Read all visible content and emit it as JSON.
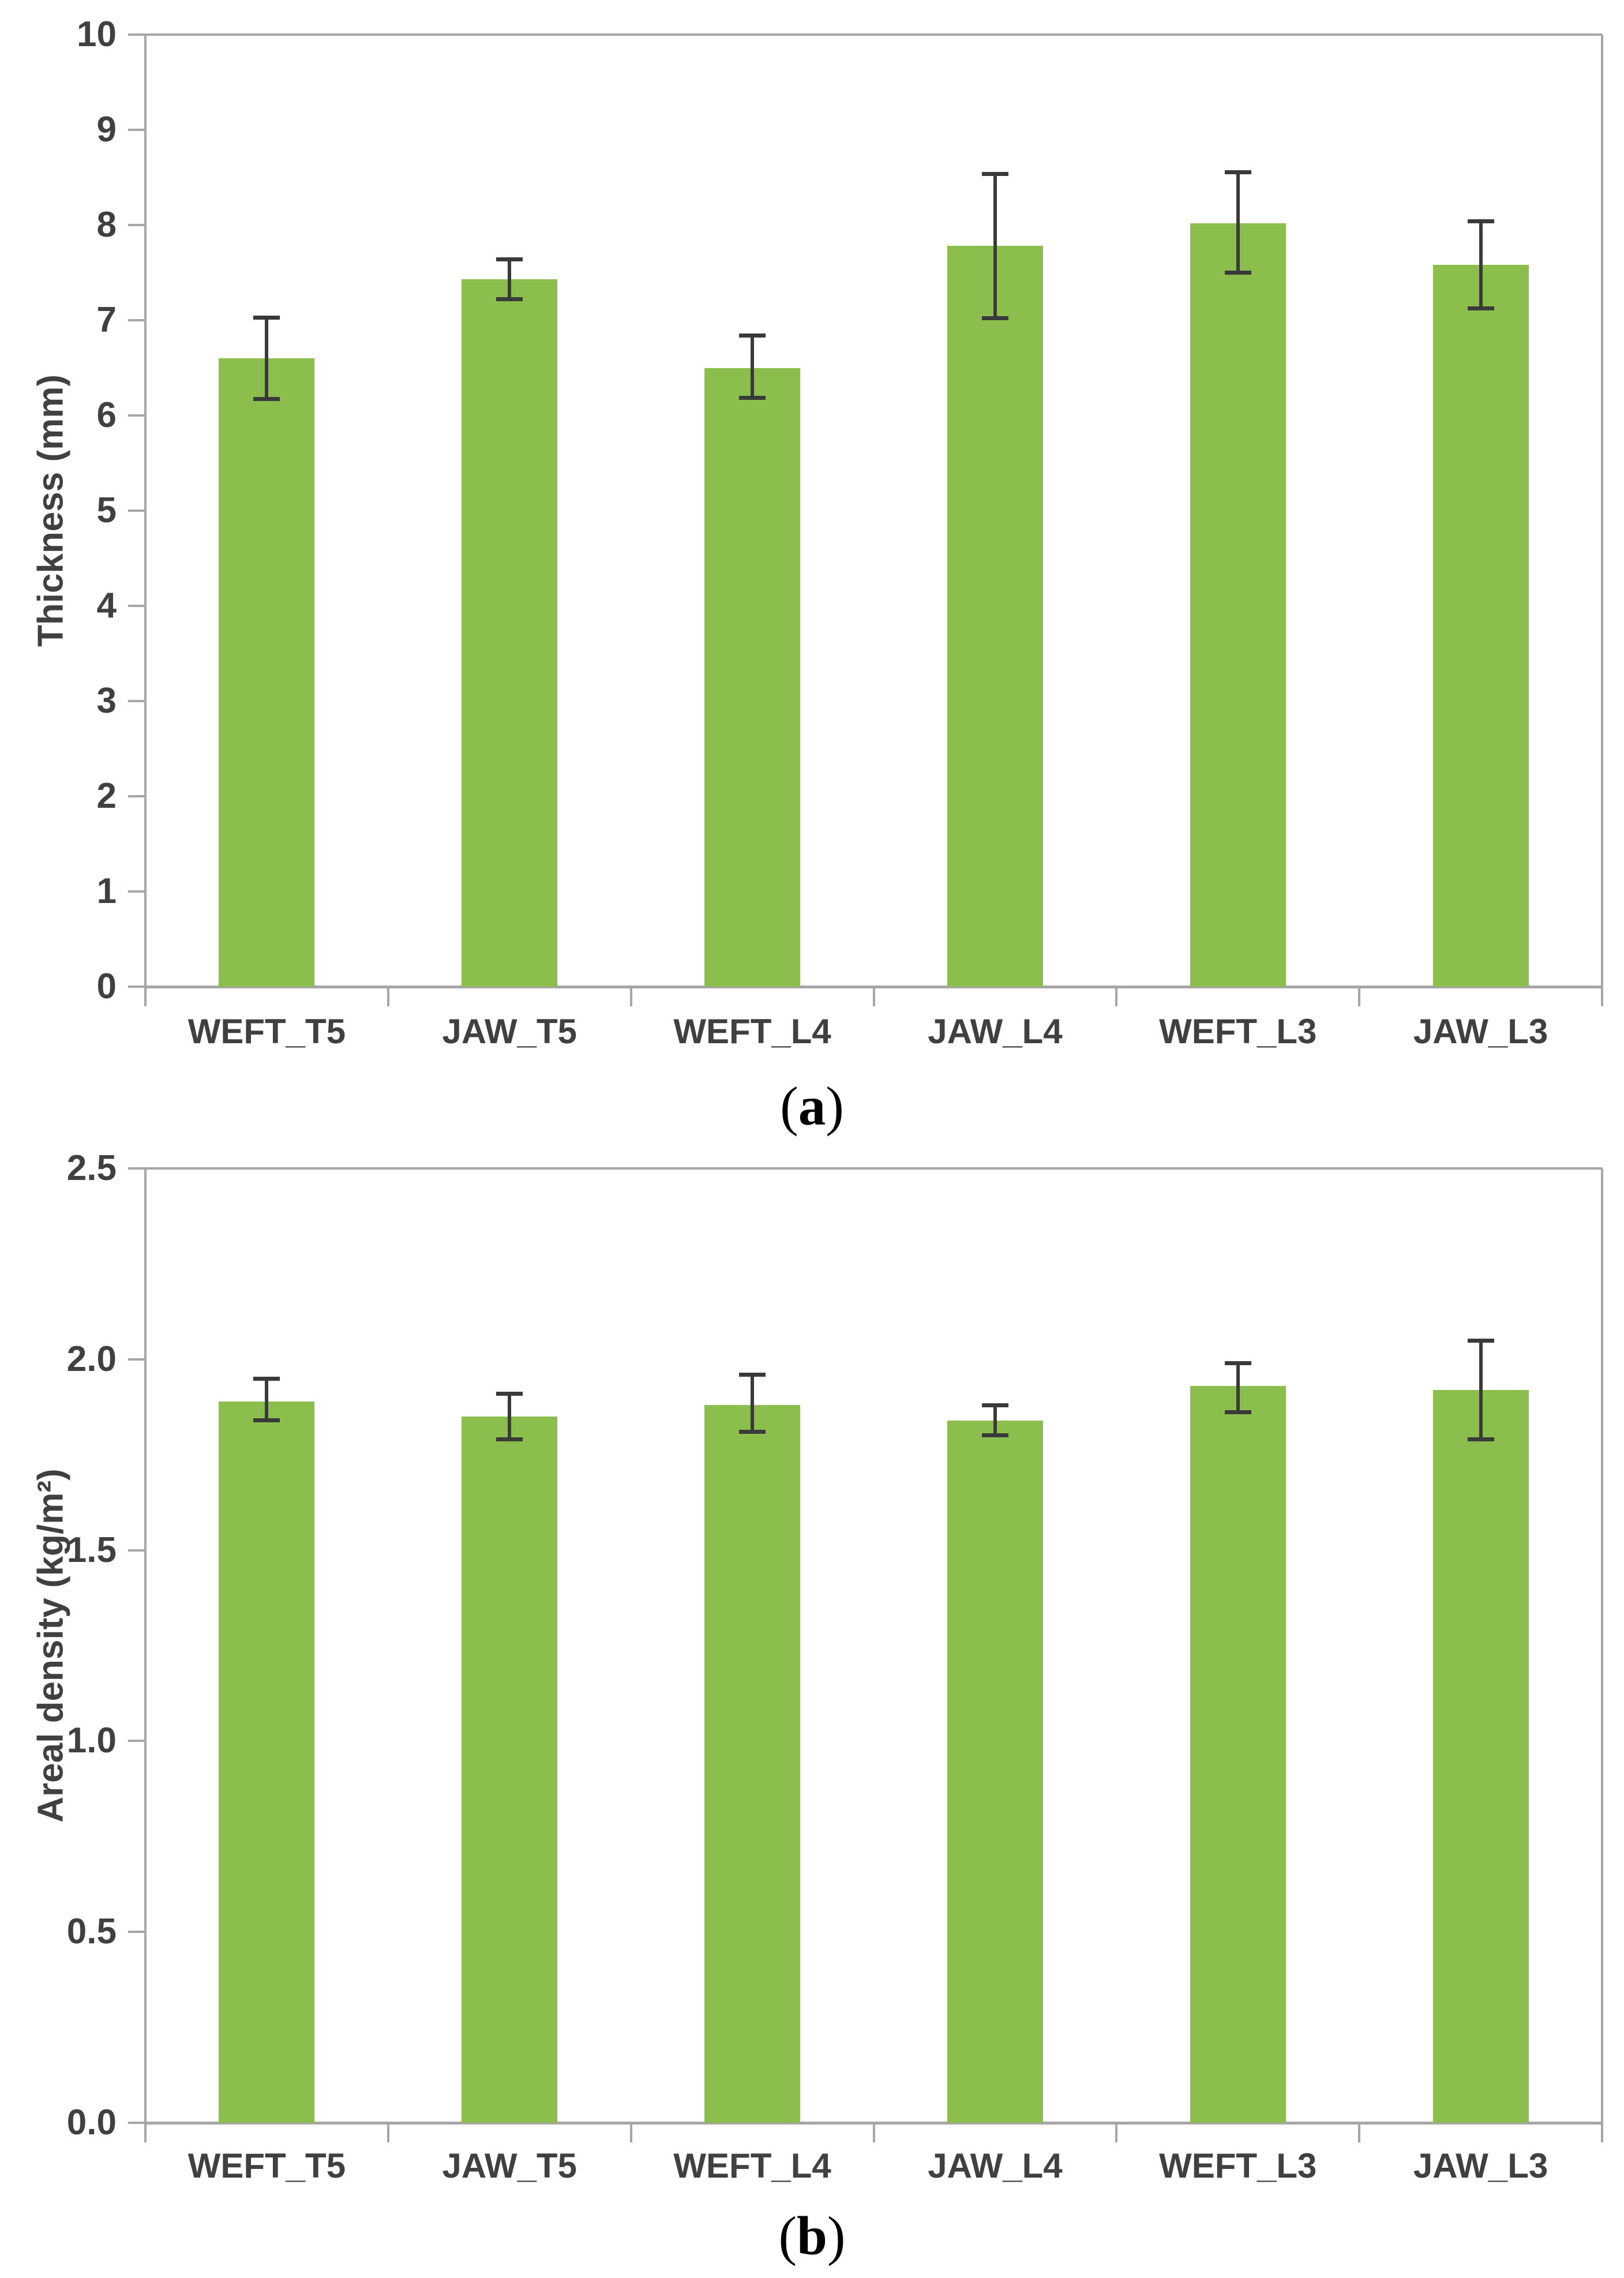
{
  "figure": {
    "background": "#ffffff",
    "caption_a": {
      "open": "(",
      "letter": "a",
      "close": ")"
    },
    "caption_b": {
      "open": "(",
      "letter": "b",
      "close": ")"
    }
  },
  "colors": {
    "bar": "#8cbe4d",
    "axis": "#a6a6a6",
    "text": "#404040",
    "error_bar": "#3a3a3a",
    "background": "#ffffff"
  },
  "chart_data": [
    {
      "id": "a",
      "type": "bar",
      "caption": "(a)",
      "ylabel": "Thickness (mm)",
      "xlabel": "",
      "categories": [
        "WEFT_T5",
        "JAW_T5",
        "WEFT_L4",
        "JAW_L4",
        "WEFT_L3",
        "JAW_L3"
      ],
      "values": [
        6.6,
        7.43,
        6.5,
        7.78,
        8.02,
        7.58
      ],
      "error_low": [
        6.17,
        7.22,
        6.18,
        7.02,
        7.5,
        7.12
      ],
      "error_high": [
        7.03,
        7.64,
        6.84,
        8.54,
        8.56,
        8.04
      ],
      "ylim": [
        0,
        10
      ],
      "ytick_step": 1,
      "ytick_decimals": 0,
      "grid": false,
      "legend": "none"
    },
    {
      "id": "b",
      "type": "bar",
      "caption": "(b)",
      "ylabel": "Areal density (kg/m²)",
      "xlabel": "",
      "categories": [
        "WEFT_T5",
        "JAW_T5",
        "WEFT_L4",
        "JAW_L4",
        "WEFT_L3",
        "JAW_L3"
      ],
      "values": [
        1.89,
        1.85,
        1.88,
        1.84,
        1.93,
        1.92
      ],
      "error_low": [
        1.84,
        1.79,
        1.81,
        1.8,
        1.86,
        1.79
      ],
      "error_high": [
        1.95,
        1.91,
        1.96,
        1.88,
        1.99,
        2.05
      ],
      "ylim": [
        0,
        2.5
      ],
      "ytick_step": 0.5,
      "ytick_decimals": 1,
      "grid": false,
      "legend": "none"
    }
  ]
}
